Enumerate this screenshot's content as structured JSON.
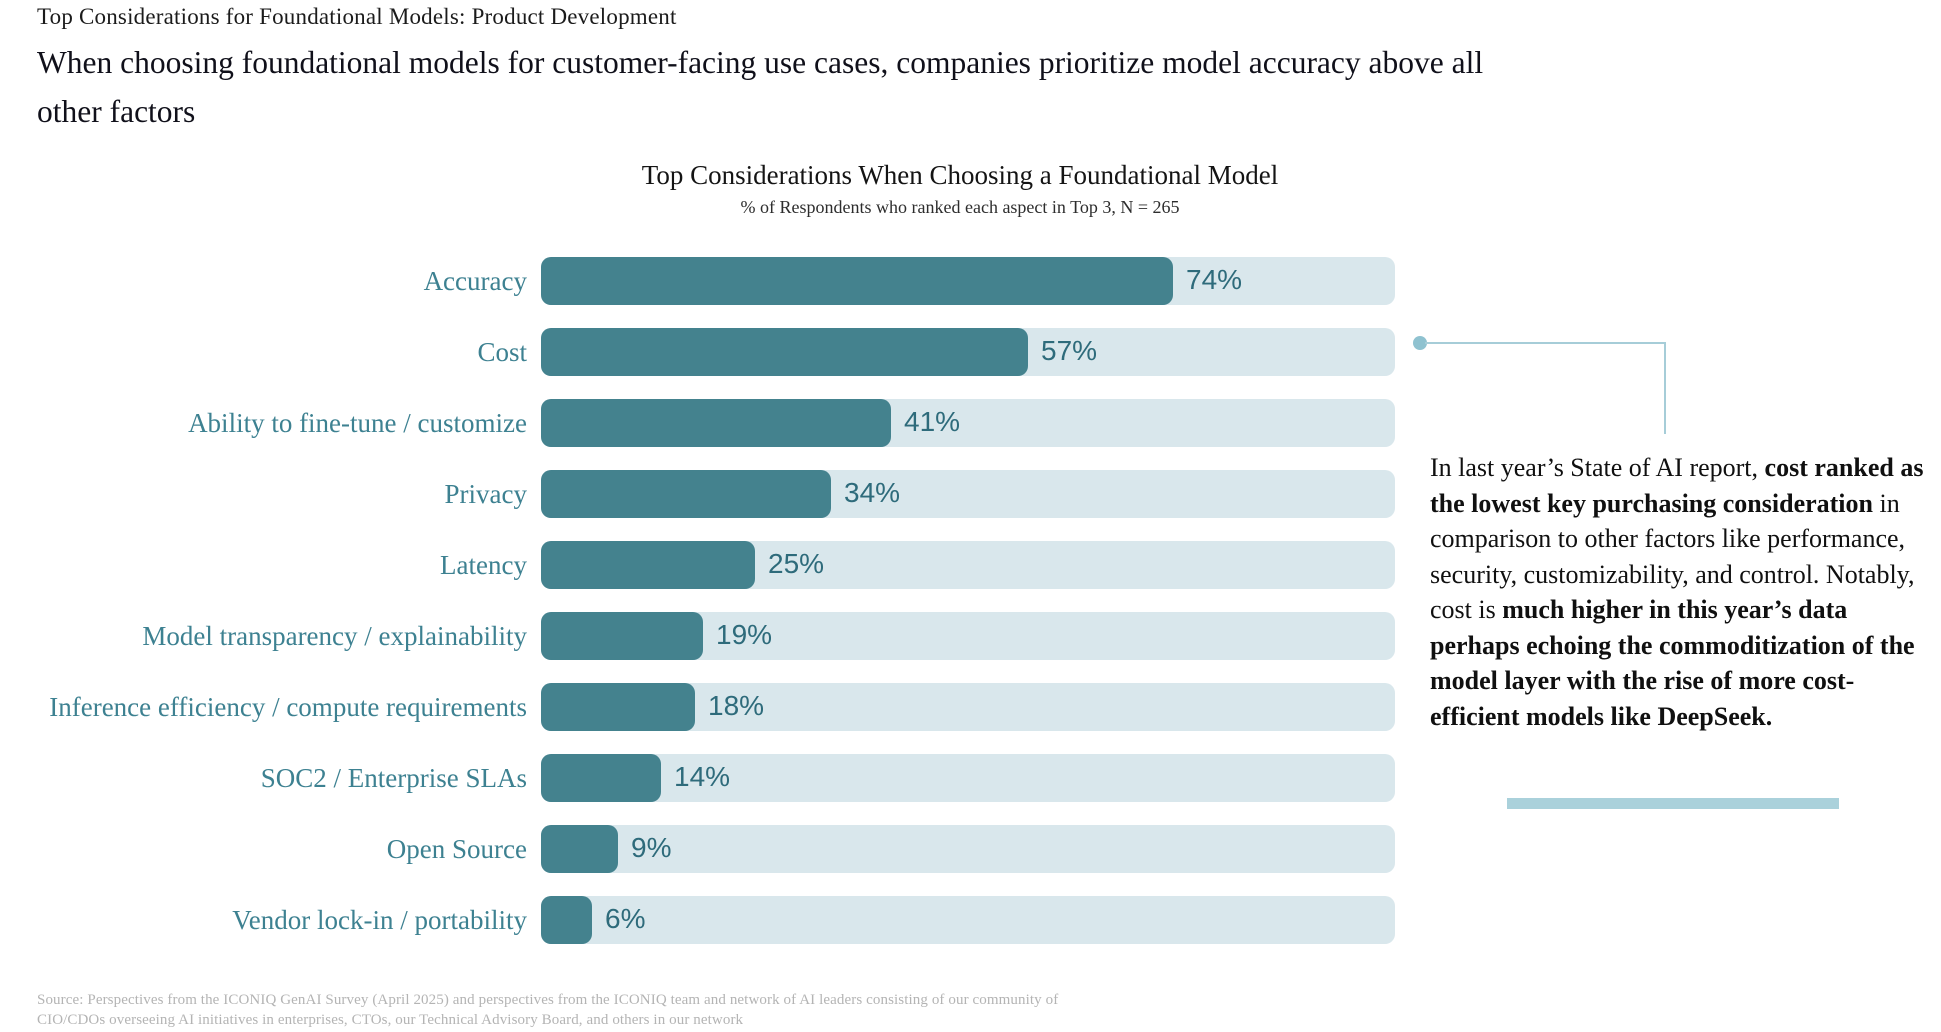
{
  "page": {
    "eyebrow": "Top Considerations for Foundational Models: Product Development",
    "headline_lines": [
      "When choosing foundational models for customer-facing use cases, companies prioritize model accuracy above all",
      "other factors"
    ],
    "source_lines": [
      "Source: Perspectives from the ICONIQ GenAI Survey (April 2025) and perspectives from the ICONIQ team and network of AI leaders consisting of our community of",
      "CIO/CDOs overseeing AI initiatives in enterprises, CTOs, our Technical Advisory Board, and others in our network"
    ]
  },
  "chart_data": {
    "type": "bar",
    "orientation": "horizontal",
    "title": "Top Considerations When Choosing a Foundational Model",
    "subtitle": "% of Respondents who ranked each aspect in Top 3, N = 265",
    "categories": [
      "Accuracy",
      "Cost",
      "Ability to fine-tune / customize",
      "Privacy",
      "Latency",
      "Model transparency / explainability",
      "Inference efficiency / compute requirements",
      "SOC2 / Enterprise SLAs",
      "Open Source",
      "Vendor lock-in / portability"
    ],
    "values": [
      74,
      57,
      41,
      34,
      25,
      19,
      18,
      14,
      9,
      6
    ],
    "value_suffix": "%",
    "xlim": [
      0,
      100
    ],
    "grid": false,
    "legend": false,
    "bar_color": "#44828e",
    "track_color": "#d9e7ec",
    "category_label_color": "#3d8191",
    "value_label_color": "#2e6b7b"
  },
  "annotation": {
    "segments": [
      {
        "text": "In last year’s State of AI report, ",
        "bold": false
      },
      {
        "text": "cost ranked as the lowest key purchasing consideration",
        "bold": true
      },
      {
        "text": " in comparison to other factors like performance, security, customizability, and control.  Notably, cost is ",
        "bold": false
      },
      {
        "text": "much higher in this year’s data perhaps echoing the commoditization of the model layer with the rise of more cost-efficient models like DeepSeek.",
        "bold": true
      }
    ],
    "underline_color": "#aad1db",
    "connector_color": "#a6cdd8",
    "attached_to_category": "Cost"
  }
}
